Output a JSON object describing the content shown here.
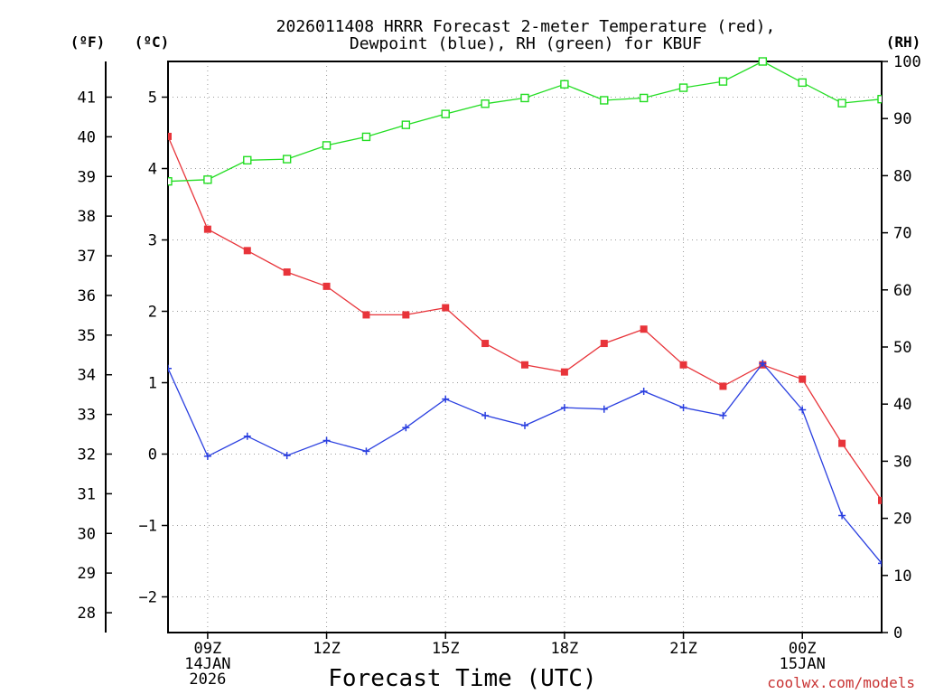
{
  "chart_data": {
    "type": "line",
    "title": [
      "2026011408 HRRR Forecast 2-meter Temperature (red),",
      "Dewpoint (blue), RH (green) for KBUF"
    ],
    "xlabel": "Forecast Time (UTC)",
    "credit": "coolwx.com/models",
    "hours": [
      8,
      9,
      10,
      11,
      12,
      13,
      14,
      15,
      16,
      17,
      18,
      19,
      20,
      21,
      22,
      23,
      24,
      25,
      26
    ],
    "xlim": [
      8,
      26
    ],
    "x_ticks": [
      {
        "hour": 9,
        "lines": [
          "09Z",
          "14JAN",
          "2026"
        ]
      },
      {
        "hour": 12,
        "lines": [
          "12Z"
        ]
      },
      {
        "hour": 15,
        "lines": [
          "15Z"
        ]
      },
      {
        "hour": 18,
        "lines": [
          "18Z"
        ]
      },
      {
        "hour": 21,
        "lines": [
          "21Z"
        ]
      },
      {
        "hour": 24,
        "lines": [
          "00Z",
          "15JAN"
        ]
      }
    ],
    "left_celsius": {
      "unit_label": "(ºC)",
      "range": [
        -2.5,
        5.5
      ],
      "ticks": [
        -2,
        -1,
        0,
        1,
        2,
        3,
        4,
        5
      ],
      "tick_labels": [
        "−2",
        "−1",
        "0",
        "1",
        "2",
        "3",
        "4",
        "5"
      ]
    },
    "left_fahrenheit": {
      "unit_label": "(ºF)",
      "ticks": [
        28,
        29,
        30,
        31,
        32,
        33,
        34,
        35,
        36,
        37,
        38,
        39,
        40,
        41
      ],
      "tick_labels": [
        "28",
        "29",
        "30",
        "31",
        "32",
        "33",
        "34",
        "35",
        "36",
        "37",
        "38",
        "39",
        "40",
        "41"
      ]
    },
    "right_rh": {
      "unit_label": "(RH)",
      "range": [
        0,
        100
      ],
      "ticks": [
        0,
        10,
        20,
        30,
        40,
        50,
        60,
        70,
        80,
        90,
        100
      ],
      "tick_labels": [
        "0",
        "10",
        "20",
        "30",
        "40",
        "50",
        "60",
        "70",
        "80",
        "90",
        "100"
      ]
    },
    "series": [
      {
        "name": "Temperature",
        "unit": "C",
        "axis": "left",
        "color": "#e8343a",
        "marker": "filled-square",
        "values": [
          4.45,
          3.15,
          2.85,
          2.55,
          2.35,
          1.95,
          1.95,
          2.05,
          1.55,
          1.25,
          1.15,
          1.55,
          1.75,
          1.25,
          0.95,
          1.25,
          1.05,
          0.15,
          -0.65
        ]
      },
      {
        "name": "Dewpoint",
        "unit": "C",
        "axis": "left",
        "color": "#2a3fe0",
        "marker": "plus",
        "values": [
          1.2,
          -0.03,
          0.25,
          -0.02,
          0.19,
          0.04,
          0.37,
          0.77,
          0.54,
          0.4,
          0.65,
          0.63,
          0.88,
          0.65,
          0.54,
          1.27,
          0.62,
          -0.86,
          -1.53
        ]
      },
      {
        "name": "RH",
        "unit": "%",
        "axis": "right",
        "color": "#22dd22",
        "marker": "open-square",
        "values": [
          79,
          79.3,
          82.7,
          82.9,
          85.3,
          86.8,
          88.9,
          90.8,
          92.6,
          93.6,
          96,
          93.2,
          93.6,
          95.4,
          96.5,
          100,
          96.3,
          92.7,
          93.4
        ]
      }
    ]
  }
}
